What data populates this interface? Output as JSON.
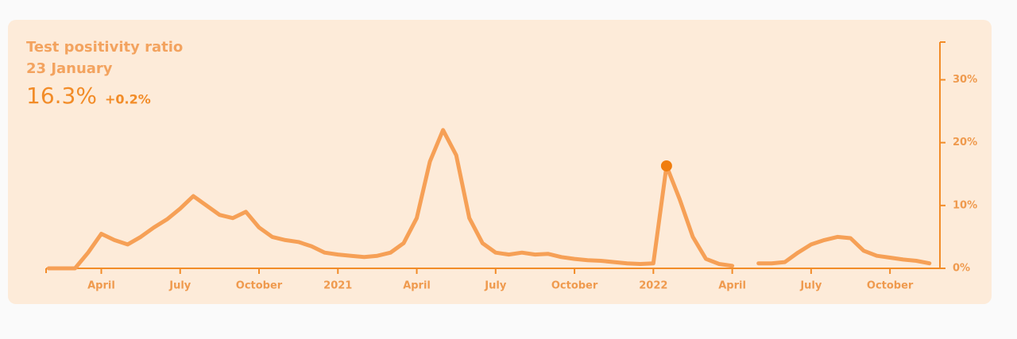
{
  "chart_data": {
    "type": "line",
    "title": "Test positivity ratio",
    "highlight": {
      "date": "23 January",
      "value": 16.3,
      "label": "16.3%",
      "change": "+0.2%"
    },
    "categories": [
      null,
      null,
      null,
      null,
      "April",
      null,
      null,
      null,
      null,
      null,
      "July",
      null,
      null,
      null,
      null,
      null,
      "October",
      null,
      null,
      null,
      null,
      null,
      "2021",
      null,
      null,
      null,
      null,
      null,
      "April",
      null,
      null,
      null,
      null,
      null,
      "July",
      null,
      null,
      null,
      null,
      null,
      "October",
      null,
      null,
      null,
      null,
      null,
      "2022",
      null,
      null,
      null,
      null,
      null,
      "April",
      null,
      null,
      null,
      null,
      null,
      "July",
      null,
      null,
      null,
      null,
      null,
      "October",
      null,
      null,
      null
    ],
    "values": [
      0,
      0,
      0,
      2.5,
      5.5,
      4.5,
      3.8,
      5,
      6.5,
      7.8,
      9.5,
      11.5,
      10,
      8.5,
      8,
      9,
      6.5,
      5,
      4.5,
      4.2,
      3.5,
      2.5,
      2.2,
      2,
      1.8,
      2,
      2.5,
      4,
      8,
      17,
      22,
      18,
      8,
      4,
      2.5,
      2.2,
      2.5,
      2.2,
      2.3,
      1.8,
      1.5,
      1.3,
      1.2,
      1,
      0.8,
      0.7,
      0.8,
      16.3,
      11,
      5,
      1.5,
      0.7,
      0.4,
      null,
      0.8,
      0.8,
      1,
      2.5,
      3.8,
      4.5,
      5,
      4.8,
      2.8,
      2,
      1.7,
      1.4,
      1.2,
      0.8
    ],
    "color": "#f6a056",
    "axis_color": "#f28c28",
    "highlight_color": "#f07d0e",
    "ylim": [
      0,
      36
    ],
    "yticks": [
      {
        "value": 0,
        "label": "0%"
      },
      {
        "value": 10,
        "label": "10%"
      },
      {
        "value": 20,
        "label": "20%"
      },
      {
        "value": 30,
        "label": "30%"
      }
    ]
  }
}
